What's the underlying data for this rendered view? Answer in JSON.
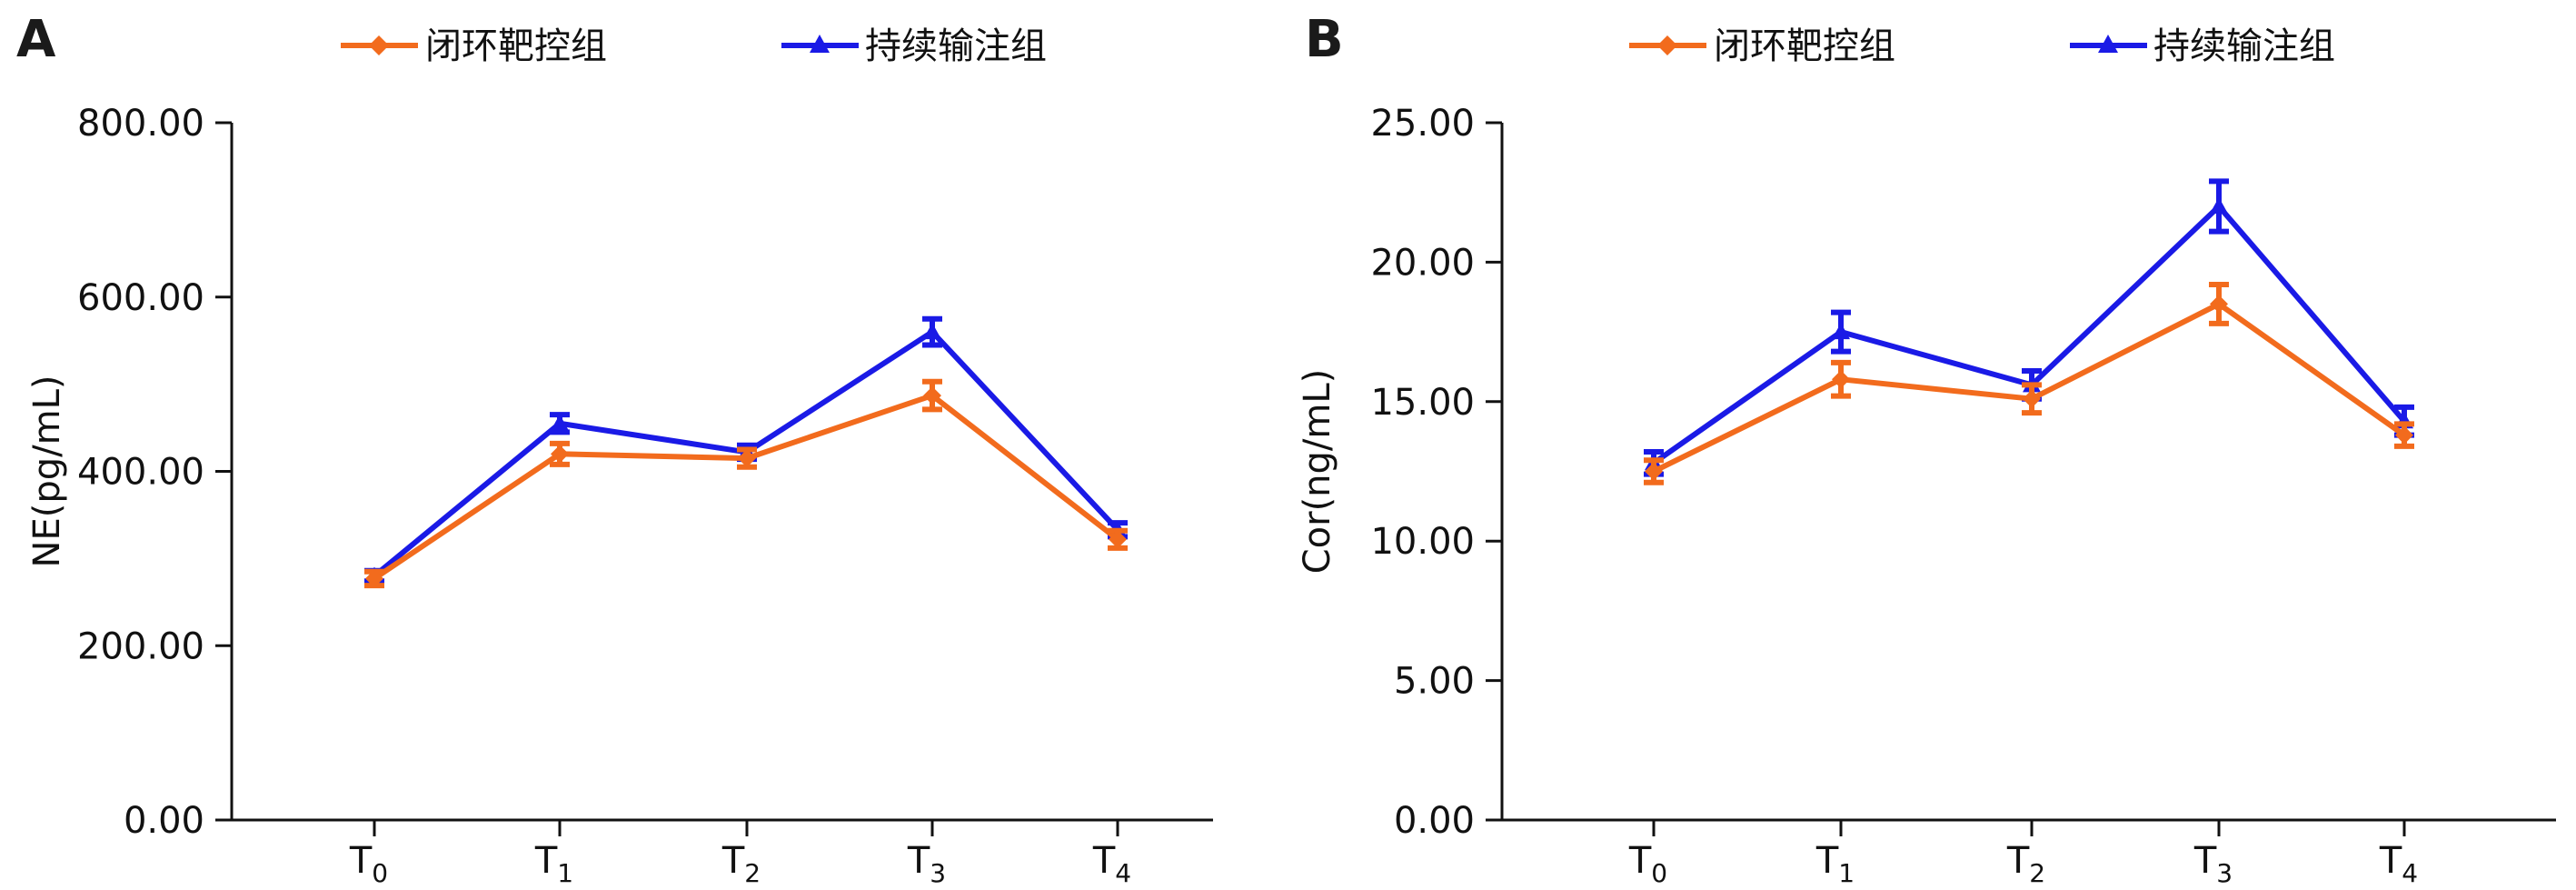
{
  "chart_data": [
    {
      "type": "line",
      "panel_label": "A",
      "categories": [
        "T",
        "T",
        "T",
        "T",
        "T"
      ],
      "category_subscripts": [
        "0",
        "1",
        "2",
        "3",
        "4"
      ],
      "ylabel": "NE(pg/mL)",
      "xlabel": "",
      "ylim": [
        0,
        800
      ],
      "yticks": [
        "0.00",
        "200.00",
        "400.00",
        "600.00",
        "800.00"
      ],
      "ytick_values": [
        0,
        200,
        400,
        600,
        800
      ],
      "legend": {
        "position": "top"
      },
      "series": [
        {
          "name": "闭环靶控组",
          "color": "#f26b1d",
          "marker": "diamond",
          "values": [
            277,
            420,
            415,
            487,
            322
          ],
          "errors": [
            8,
            12,
            10,
            16,
            10
          ]
        },
        {
          "name": "持续输注组",
          "color": "#1a1ae6",
          "marker": "triangle",
          "values": [
            280,
            455,
            422,
            560,
            333
          ],
          "errors": [
            6,
            10,
            8,
            15,
            8
          ]
        }
      ]
    },
    {
      "type": "line",
      "panel_label": "B",
      "categories": [
        "T",
        "T",
        "T",
        "T",
        "T"
      ],
      "category_subscripts": [
        "0",
        "1",
        "2",
        "3",
        "4"
      ],
      "ylabel": "Cor(ng/mL)",
      "xlabel": "",
      "ylim": [
        0,
        25
      ],
      "yticks": [
        "0.00",
        "5.00",
        "10.00",
        "15.00",
        "20.00",
        "25.00"
      ],
      "ytick_values": [
        0,
        5,
        10,
        15,
        20,
        25
      ],
      "legend": {
        "position": "top"
      },
      "series": [
        {
          "name": "闭环靶控组",
          "color": "#f26b1d",
          "marker": "diamond",
          "values": [
            12.5,
            15.8,
            15.1,
            18.5,
            13.8
          ],
          "errors": [
            0.4,
            0.6,
            0.5,
            0.7,
            0.4
          ]
        },
        {
          "name": "持续输注组",
          "color": "#1a1ae6",
          "marker": "triangle",
          "values": [
            12.8,
            17.5,
            15.6,
            22.0,
            14.3
          ],
          "errors": [
            0.4,
            0.7,
            0.5,
            0.9,
            0.5
          ]
        }
      ]
    }
  ]
}
